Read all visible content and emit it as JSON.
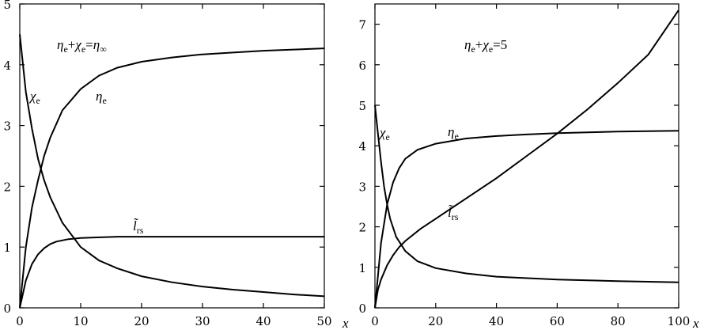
{
  "chart_data": [
    {
      "type": "line",
      "xlabel": "x",
      "xlim": [
        0,
        50
      ],
      "ylim": [
        0,
        5
      ],
      "xticks": [
        "0",
        "10",
        "20",
        "30",
        "40",
        "50"
      ],
      "yticks": [
        "0",
        "1",
        "2",
        "3",
        "4",
        "5"
      ],
      "annotation": "ηe+χe=η∞",
      "series": [
        {
          "name": "ηe",
          "x": [
            0,
            1,
            2,
            3,
            4,
            5,
            7,
            10,
            13,
            16,
            20,
            25,
            30,
            35,
            40,
            45,
            50
          ],
          "y": [
            0,
            1.0,
            1.65,
            2.1,
            2.5,
            2.8,
            3.25,
            3.6,
            3.82,
            3.95,
            4.05,
            4.12,
            4.17,
            4.2,
            4.23,
            4.25,
            4.27
          ]
        },
        {
          "name": "χe",
          "x": [
            0,
            1,
            2,
            3,
            4,
            5,
            7,
            10,
            13,
            16,
            20,
            25,
            30,
            35,
            40,
            45,
            50
          ],
          "y": [
            4.5,
            3.55,
            2.95,
            2.45,
            2.1,
            1.82,
            1.4,
            1.0,
            0.78,
            0.65,
            0.52,
            0.42,
            0.35,
            0.3,
            0.26,
            0.22,
            0.19
          ]
        },
        {
          "name": "l̃rs",
          "x": [
            0,
            1,
            2,
            3,
            4,
            5,
            6,
            8,
            10,
            13,
            16,
            20,
            30,
            40,
            50
          ],
          "y": [
            0,
            0.45,
            0.72,
            0.88,
            0.98,
            1.05,
            1.09,
            1.13,
            1.15,
            1.16,
            1.17,
            1.17,
            1.17,
            1.17,
            1.17
          ]
        }
      ]
    },
    {
      "type": "line",
      "xlabel": "x",
      "xlim": [
        0,
        100
      ],
      "ylim": [
        0,
        7.5
      ],
      "xticks": [
        "0",
        "20",
        "40",
        "60",
        "80",
        "100"
      ],
      "yticks": [
        "0",
        "1",
        "2",
        "3",
        "4",
        "5",
        "6",
        "7"
      ],
      "annotation": "ηe+χe=5",
      "series": [
        {
          "name": "ηe",
          "x": [
            0,
            2,
            4,
            6,
            8,
            10,
            14,
            20,
            30,
            40,
            50,
            60,
            70,
            80,
            90,
            100
          ],
          "y": [
            0,
            1.6,
            2.55,
            3.1,
            3.45,
            3.68,
            3.9,
            4.05,
            4.18,
            4.24,
            4.28,
            4.31,
            4.33,
            4.35,
            4.36,
            4.37
          ]
        },
        {
          "name": "χe",
          "x": [
            0,
            1,
            2,
            3,
            4,
            5,
            7,
            10,
            14,
            20,
            30,
            40,
            60,
            80,
            100
          ],
          "y": [
            5.0,
            4.3,
            3.6,
            3.0,
            2.55,
            2.2,
            1.75,
            1.4,
            1.15,
            0.98,
            0.85,
            0.77,
            0.7,
            0.66,
            0.63
          ]
        },
        {
          "name": "l̃rs",
          "x": [
            0,
            1,
            2,
            4,
            6,
            8,
            10,
            15,
            20,
            30,
            40,
            50,
            60,
            70,
            80,
            90,
            100
          ],
          "y": [
            0,
            0.45,
            0.7,
            1.05,
            1.3,
            1.5,
            1.65,
            1.95,
            2.2,
            2.7,
            3.2,
            3.75,
            4.3,
            4.9,
            5.55,
            6.25,
            7.35
          ]
        }
      ]
    }
  ]
}
